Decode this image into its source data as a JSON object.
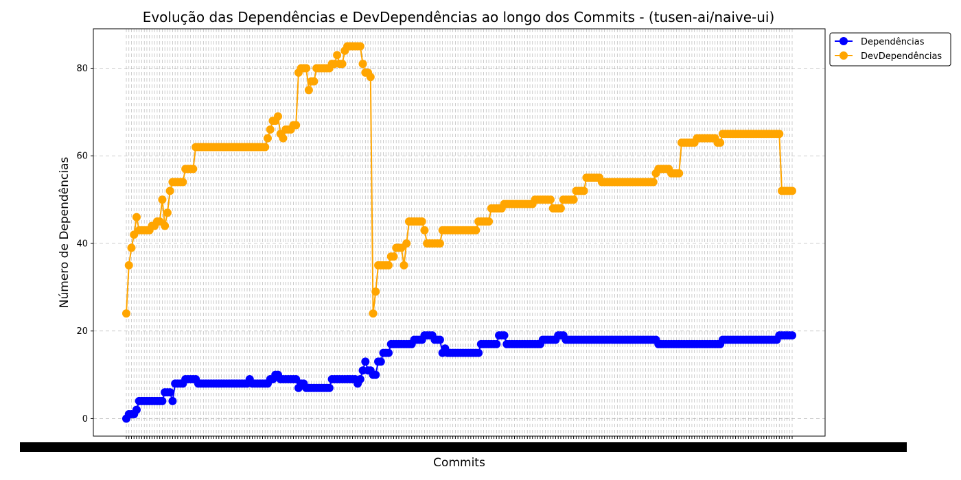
{
  "chart_data": {
    "type": "line",
    "title": "Evolução das Dependências e DevDependências ao longo dos Commits - (tusen-ai/naive-ui)",
    "xlabel": "Commits",
    "ylabel": "Número de Dependências",
    "ylim": [
      -4,
      89
    ],
    "yticks": [
      0,
      20,
      40,
      60,
      80
    ],
    "n_commits": 260,
    "grid": true,
    "legend_position": "upper-right-outside",
    "colors": {
      "dependencies": "#0000ff",
      "devdependencies": "#ffa500"
    },
    "series": [
      {
        "name": "Dependências",
        "key": "dependencies",
        "steps": [
          [
            0,
            0
          ],
          [
            1,
            1
          ],
          [
            3,
            1
          ],
          [
            4,
            2
          ],
          [
            5,
            4
          ],
          [
            14,
            4
          ],
          [
            15,
            6
          ],
          [
            18,
            4
          ],
          [
            19,
            8
          ],
          [
            22,
            8
          ],
          [
            23,
            9
          ],
          [
            28,
            8
          ],
          [
            47,
            8
          ],
          [
            48,
            9
          ],
          [
            49,
            8
          ],
          [
            55,
            8
          ],
          [
            56,
            9
          ],
          [
            58,
            10
          ],
          [
            60,
            9
          ],
          [
            67,
            7
          ],
          [
            68,
            8
          ],
          [
            70,
            7
          ],
          [
            80,
            9
          ],
          [
            89,
            9
          ],
          [
            90,
            8
          ],
          [
            91,
            9
          ],
          [
            92,
            11
          ],
          [
            93,
            13
          ],
          [
            94,
            11
          ],
          [
            96,
            10
          ],
          [
            98,
            13
          ],
          [
            100,
            15
          ],
          [
            103,
            17
          ],
          [
            112,
            18
          ],
          [
            116,
            19
          ],
          [
            120,
            18
          ],
          [
            123,
            15
          ],
          [
            124,
            16
          ],
          [
            125,
            15
          ],
          [
            138,
            17
          ],
          [
            145,
            19
          ],
          [
            148,
            17
          ],
          [
            162,
            18
          ],
          [
            168,
            19
          ],
          [
            171,
            18
          ],
          [
            207,
            17
          ],
          [
            232,
            18
          ],
          [
            254,
            19
          ],
          [
            259,
            19
          ]
        ]
      },
      {
        "name": "DevDependências",
        "key": "devdependencies",
        "steps": [
          [
            0,
            24
          ],
          [
            1,
            35
          ],
          [
            2,
            39
          ],
          [
            3,
            42
          ],
          [
            4,
            46
          ],
          [
            5,
            43
          ],
          [
            10,
            44
          ],
          [
            12,
            45
          ],
          [
            14,
            50
          ],
          [
            15,
            44
          ],
          [
            16,
            47
          ],
          [
            17,
            52
          ],
          [
            18,
            54
          ],
          [
            23,
            57
          ],
          [
            27,
            62
          ],
          [
            55,
            64
          ],
          [
            56,
            66
          ],
          [
            57,
            68
          ],
          [
            59,
            69
          ],
          [
            60,
            65
          ],
          [
            61,
            64
          ],
          [
            62,
            66
          ],
          [
            65,
            67
          ],
          [
            67,
            79
          ],
          [
            68,
            80
          ],
          [
            71,
            75
          ],
          [
            72,
            77
          ],
          [
            74,
            80
          ],
          [
            80,
            81
          ],
          [
            82,
            83
          ],
          [
            83,
            81
          ],
          [
            85,
            84
          ],
          [
            86,
            85
          ],
          [
            92,
            81
          ],
          [
            93,
            79
          ],
          [
            95,
            78
          ],
          [
            96,
            24
          ],
          [
            97,
            29
          ],
          [
            98,
            35
          ],
          [
            103,
            37
          ],
          [
            105,
            39
          ],
          [
            108,
            35
          ],
          [
            109,
            40
          ],
          [
            110,
            45
          ],
          [
            116,
            43
          ],
          [
            117,
            40
          ],
          [
            123,
            43
          ],
          [
            137,
            45
          ],
          [
            142,
            48
          ],
          [
            147,
            49
          ],
          [
            159,
            50
          ],
          [
            166,
            48
          ],
          [
            170,
            50
          ],
          [
            175,
            52
          ],
          [
            179,
            55
          ],
          [
            185,
            54
          ],
          [
            206,
            56
          ],
          [
            207,
            57
          ],
          [
            212,
            56
          ],
          [
            216,
            63
          ],
          [
            222,
            64
          ],
          [
            230,
            63
          ],
          [
            232,
            65
          ],
          [
            255,
            52
          ],
          [
            259,
            52
          ]
        ]
      }
    ]
  }
}
